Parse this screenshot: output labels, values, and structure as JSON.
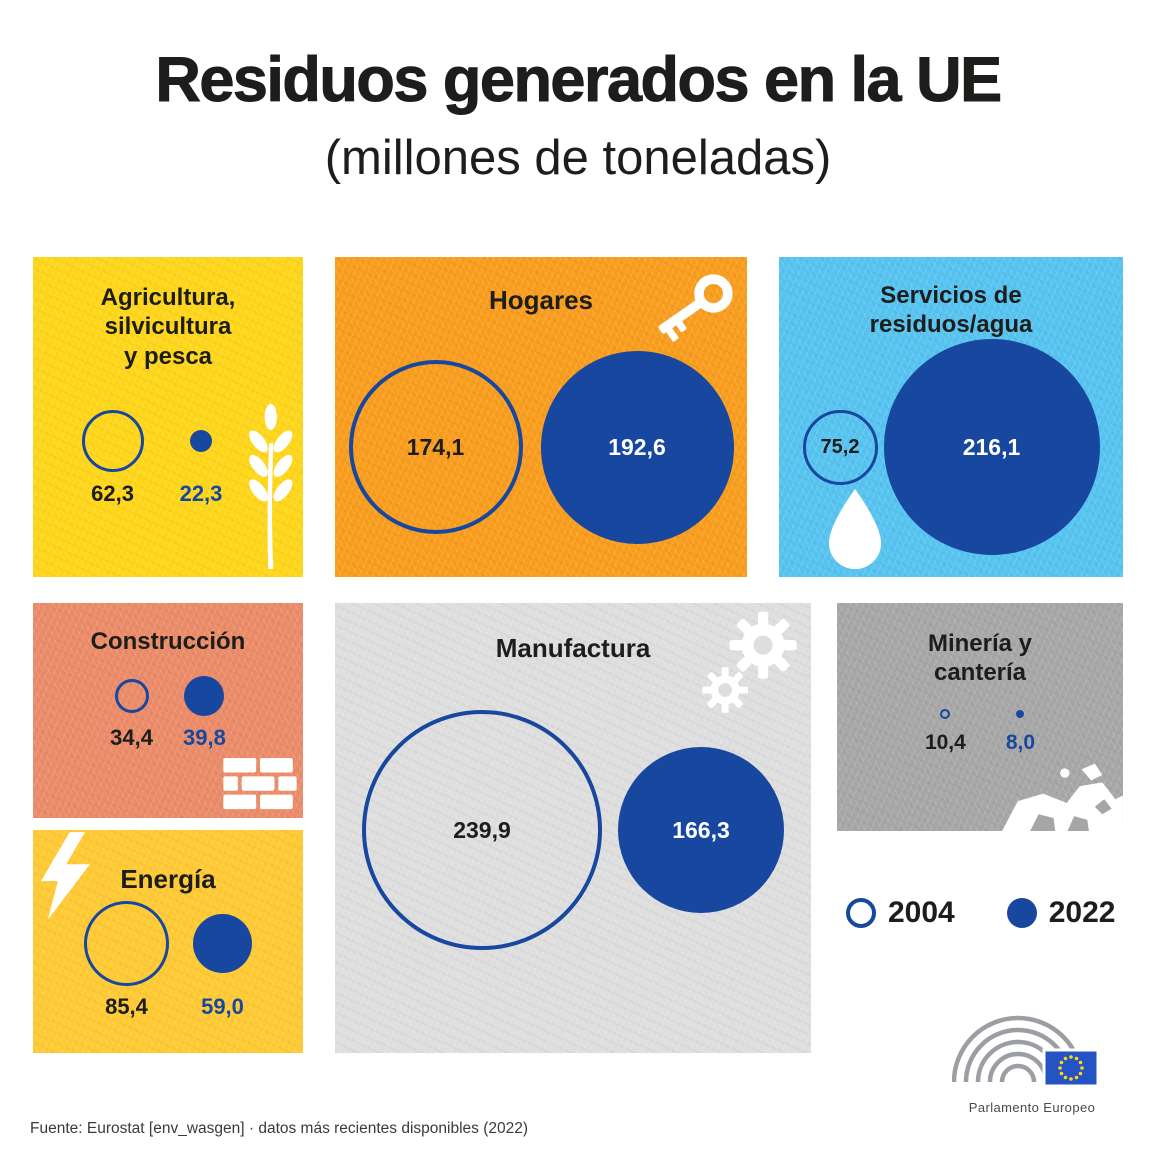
{
  "title": "Residuos generados en la UE",
  "subtitle": "(millones de toneladas)",
  "footer": "Fuente: Eurostat [env_wasgen] · datos más recientes disponibles (2022)",
  "logo_caption": "Parlamento Europeo",
  "colors": {
    "accent_blue": "#17479E",
    "text_dark": "#1D1D1B"
  },
  "legend": {
    "items": [
      {
        "label": "2004",
        "style": "outlined"
      },
      {
        "label": "2022",
        "style": "filled"
      }
    ]
  },
  "panels": [
    {
      "id": "agricultura",
      "title": "Agricultura,\nsilvicultura\ny pesca",
      "color": "#FFD617",
      "v2004": 62.3,
      "label2004": "62,3",
      "v2022": 22.3,
      "label2022": "22,3",
      "icon": "wheat"
    },
    {
      "id": "hogares",
      "title": "Hogares",
      "color": "#F99C1B",
      "v2004": 174.1,
      "label2004": "174,1",
      "v2022": 192.6,
      "label2022": "192,6",
      "icon": "key"
    },
    {
      "id": "servicios",
      "title": "Servicios de\nresiduos/agua",
      "color": "#55C3F0",
      "v2004": 75.2,
      "label2004": "75,2",
      "v2022": 216.1,
      "label2022": "216,1",
      "icon": "water-drop"
    },
    {
      "id": "construccion",
      "title": "Construcción",
      "color": "#EB8A67",
      "v2004": 34.4,
      "label2004": "34,4",
      "v2022": 39.8,
      "label2022": "39,8",
      "icon": "bricks"
    },
    {
      "id": "manufactura",
      "title": "Manufactura",
      "color": "#DEDEDE",
      "v2004": 239.9,
      "label2004": "239,9",
      "v2022": 166.3,
      "label2022": "166,3",
      "icon": "gears"
    },
    {
      "id": "mineria",
      "title": "Minería y\ncantería",
      "color": "#A6A6A6",
      "v2004": 10.4,
      "label2004": "10,4",
      "v2022": 8,
      "label2022": "8,0",
      "icon": "rocks"
    },
    {
      "id": "energia",
      "title": "Energía",
      "color": "#FFC932",
      "v2004": 85.4,
      "label2004": "85,4",
      "v2022": 59,
      "label2022": "59,0",
      "icon": "lightning"
    }
  ],
  "chart_data": {
    "type": "proportional-area-circles",
    "title": "Residuos generados en la UE",
    "subtitle": "(millones de toneladas)",
    "unit": "millones de toneladas",
    "categories": [
      "Agricultura, silvicultura y pesca",
      "Hogares",
      "Servicios de residuos/agua",
      "Construcción",
      "Manufactura",
      "Minería y cantería",
      "Energía"
    ],
    "series": [
      {
        "name": "2004",
        "values": [
          62.3,
          174.1,
          75.2,
          34.4,
          239.9,
          10.4,
          85.4
        ]
      },
      {
        "name": "2022",
        "values": [
          22.3,
          192.6,
          216.1,
          39.8,
          166.3,
          8.0,
          59.0
        ]
      }
    ],
    "legend_position": "right-middle",
    "source": "Eurostat [env_wasgen]",
    "latest_data_year": "2022"
  }
}
